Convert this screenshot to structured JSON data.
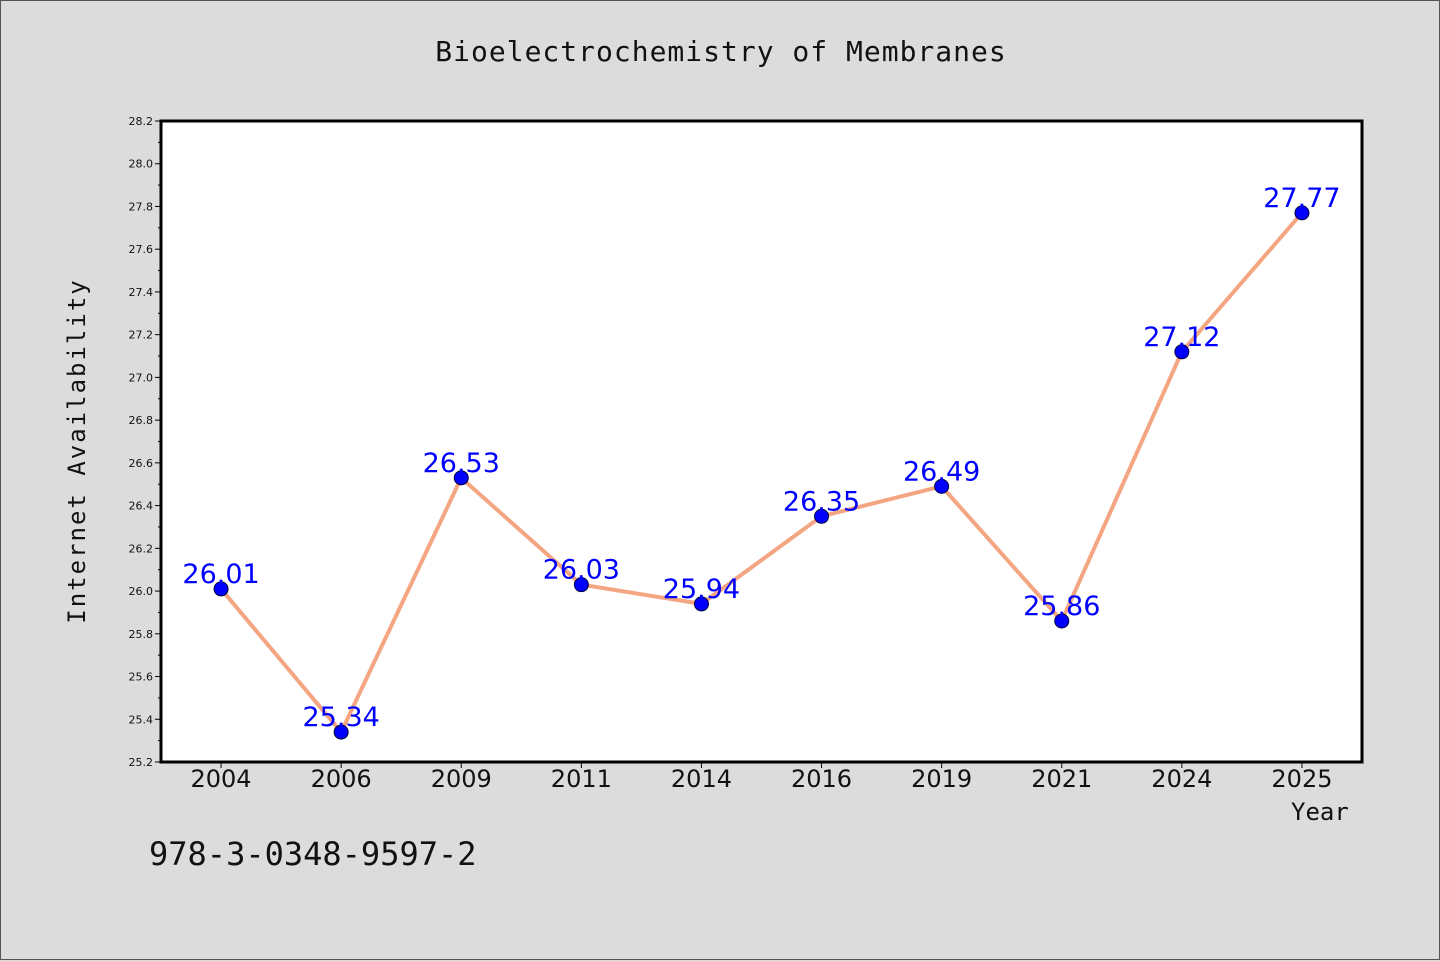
{
  "chart_data": {
    "type": "line",
    "title": "Bioelectrochemistry of Membranes",
    "xlabel": "Year",
    "ylabel": "Internet Availability",
    "categories": [
      "2004",
      "2006",
      "2009",
      "2011",
      "2014",
      "2016",
      "2019",
      "2021",
      "2024",
      "2025"
    ],
    "series": [
      {
        "values": [
          26.01,
          25.34,
          26.53,
          26.03,
          25.94,
          26.35,
          26.49,
          25.86,
          27.12,
          27.77
        ],
        "data_labels": [
          "26.01",
          "25.34",
          "26.53",
          "26.03",
          "25.94",
          "26.35",
          "26.49",
          "25.86",
          "27.12",
          "27.77"
        ],
        "line_color": "#f4a582",
        "marker_color": "#0000ff",
        "label_color": "#0000ff"
      }
    ],
    "ylim": [
      25.2,
      28.2
    ],
    "y_ticks": [
      "25.2",
      "25.4",
      "25.6",
      "25.8",
      "26.0",
      "26.2",
      "26.4",
      "26.6",
      "26.8",
      "27.0",
      "27.2",
      "27.4",
      "27.6",
      "27.8",
      "28.0",
      "28.2"
    ],
    "grid": false,
    "legend": "none"
  },
  "footer_text": "978-3-0348-9597-2",
  "colors": {
    "background": "#dcdcdc",
    "plot_background": "#ffffff",
    "axis": "#000000"
  }
}
